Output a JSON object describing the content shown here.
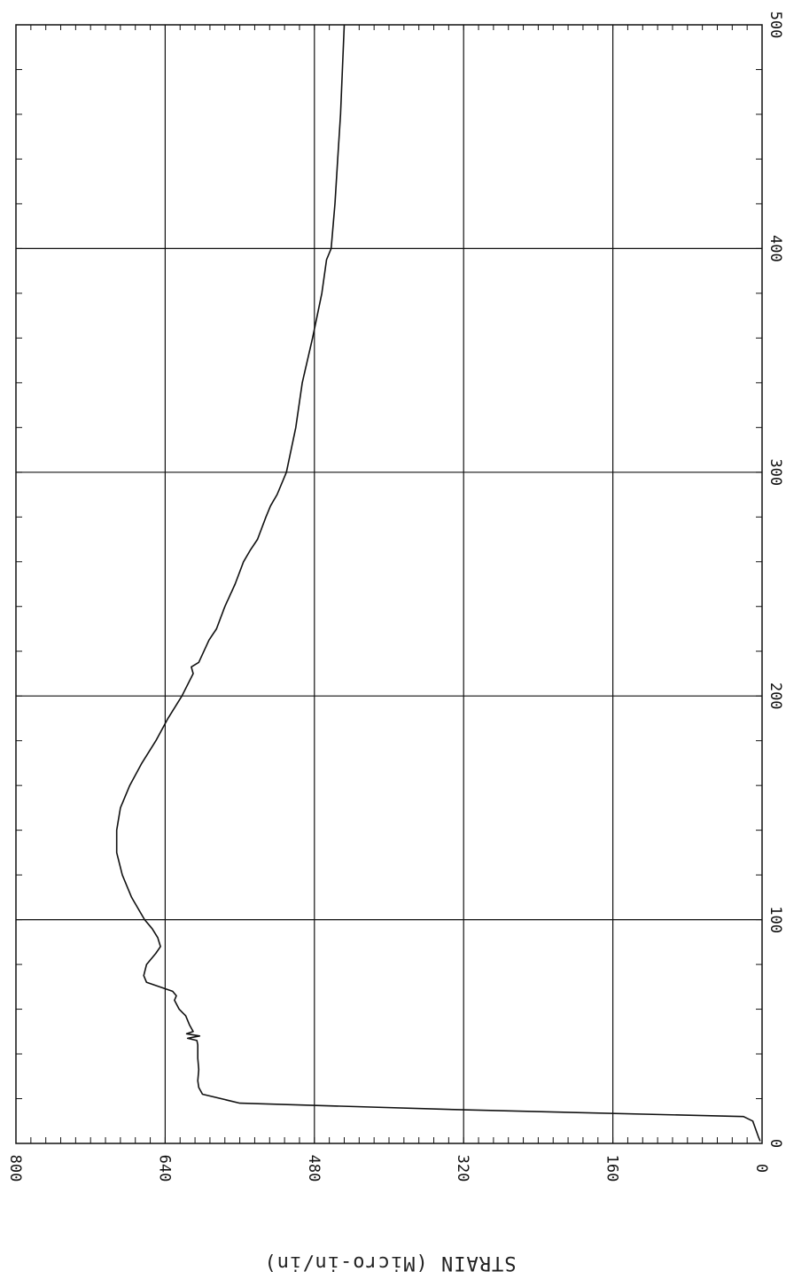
{
  "chart_data": {
    "type": "line",
    "orientation": "rotated-90-clockwise",
    "title": "",
    "xlabel": "",
    "ylabel": "STRAIN (Micro-in/in)",
    "xlim": [
      0,
      500
    ],
    "ylim": [
      0,
      800
    ],
    "x_ticks": [
      "0",
      "100",
      "200",
      "300",
      "400",
      "500"
    ],
    "y_ticks": [
      "0",
      "160",
      "320",
      "480",
      "640",
      "800"
    ],
    "grid": true,
    "series": [
      {
        "points": [
          [
            1,
            2
          ],
          [
            3,
            4
          ],
          [
            10,
            10
          ],
          [
            12,
            20
          ],
          [
            15,
            320
          ],
          [
            18,
            560
          ],
          [
            22,
            600
          ],
          [
            25,
            604
          ],
          [
            28,
            605
          ],
          [
            33,
            604
          ],
          [
            38,
            605
          ],
          [
            44,
            605
          ],
          [
            46,
            606
          ],
          [
            47,
            616
          ],
          [
            48,
            603
          ],
          [
            49,
            617
          ],
          [
            50,
            610
          ],
          [
            53,
            614
          ],
          [
            57,
            618
          ],
          [
            60,
            625
          ],
          [
            64,
            630
          ],
          [
            66,
            628
          ],
          [
            68,
            632
          ],
          [
            72,
            660
          ],
          [
            75,
            663
          ],
          [
            80,
            660
          ],
          [
            85,
            650
          ],
          [
            88,
            645
          ],
          [
            92,
            648
          ],
          [
            96,
            654
          ],
          [
            100,
            662
          ],
          [
            110,
            676
          ],
          [
            120,
            686
          ],
          [
            130,
            692
          ],
          [
            140,
            692
          ],
          [
            150,
            688
          ],
          [
            160,
            678
          ],
          [
            170,
            665
          ],
          [
            180,
            650
          ],
          [
            190,
            637
          ],
          [
            200,
            622
          ],
          [
            210,
            610
          ],
          [
            213,
            612
          ],
          [
            215,
            604
          ],
          [
            225,
            593
          ],
          [
            230,
            585
          ],
          [
            240,
            576
          ],
          [
            250,
            565
          ],
          [
            260,
            556
          ],
          [
            265,
            549
          ],
          [
            270,
            541
          ],
          [
            280,
            532
          ],
          [
            285,
            527
          ],
          [
            290,
            520
          ],
          [
            300,
            510
          ],
          [
            320,
            500
          ],
          [
            340,
            493
          ],
          [
            360,
            482
          ],
          [
            380,
            472
          ],
          [
            395,
            467
          ],
          [
            400,
            462
          ],
          [
            420,
            458
          ],
          [
            440,
            455
          ],
          [
            460,
            452
          ],
          [
            480,
            450
          ],
          [
            500,
            448
          ]
        ]
      }
    ],
    "colors": {
      "line": "#111111",
      "grid": "#111111"
    }
  }
}
